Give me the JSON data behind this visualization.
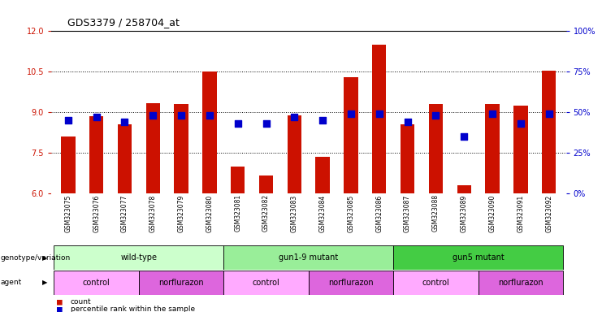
{
  "title": "GDS3379 / 258704_at",
  "samples": [
    "GSM323075",
    "GSM323076",
    "GSM323077",
    "GSM323078",
    "GSM323079",
    "GSM323080",
    "GSM323081",
    "GSM323082",
    "GSM323083",
    "GSM323084",
    "GSM323085",
    "GSM323086",
    "GSM323087",
    "GSM323088",
    "GSM323089",
    "GSM323090",
    "GSM323091",
    "GSM323092"
  ],
  "count_values": [
    8.1,
    8.85,
    8.55,
    9.35,
    9.3,
    10.5,
    7.0,
    6.65,
    8.9,
    7.35,
    10.3,
    11.5,
    8.55,
    9.3,
    6.3,
    9.3,
    9.25,
    10.55
  ],
  "percentile_values": [
    45,
    47,
    44,
    48,
    48,
    48,
    43,
    43,
    47,
    45,
    49,
    49,
    44,
    48,
    35,
    49,
    43,
    49
  ],
  "ylim_left": [
    6,
    12
  ],
  "ylim_right": [
    0,
    100
  ],
  "yticks_left": [
    6,
    7.5,
    9,
    10.5,
    12
  ],
  "yticks_right": [
    0,
    25,
    50,
    75,
    100
  ],
  "bar_color": "#cc1100",
  "dot_color": "#0000cc",
  "tick_bg_color": "#cccccc",
  "genotype_groups": [
    {
      "label": "wild-type",
      "start": 0,
      "end": 6,
      "color": "#ccffcc"
    },
    {
      "label": "gun1-9 mutant",
      "start": 6,
      "end": 12,
      "color": "#99ee99"
    },
    {
      "label": "gun5 mutant",
      "start": 12,
      "end": 18,
      "color": "#44cc44"
    }
  ],
  "agent_groups": [
    {
      "label": "control",
      "start": 0,
      "end": 3,
      "color": "#ffaaff"
    },
    {
      "label": "norflurazon",
      "start": 3,
      "end": 6,
      "color": "#dd66dd"
    },
    {
      "label": "control",
      "start": 6,
      "end": 9,
      "color": "#ffaaff"
    },
    {
      "label": "norflurazon",
      "start": 9,
      "end": 12,
      "color": "#dd66dd"
    },
    {
      "label": "control",
      "start": 12,
      "end": 15,
      "color": "#ffaaff"
    },
    {
      "label": "norflurazon",
      "start": 15,
      "end": 18,
      "color": "#dd66dd"
    }
  ],
  "genotype_label": "genotype/variation",
  "agent_label": "agent",
  "legend_count": "count",
  "legend_percentile": "percentile rank within the sample",
  "bar_width": 0.5,
  "dot_size": 30
}
